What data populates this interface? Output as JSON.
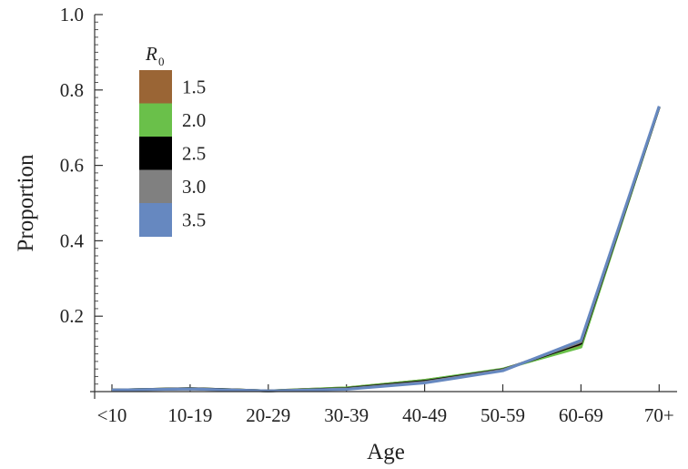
{
  "chart_data": {
    "type": "line",
    "xlabel": "Age",
    "ylabel": "Proportion",
    "categories": [
      "<10",
      "10-19",
      "20-29",
      "30-39",
      "40-49",
      "50-59",
      "60-69",
      "70+"
    ],
    "ylim": [
      0,
      1.0
    ],
    "yticks": [
      "0.2",
      "0.4",
      "0.6",
      "0.8",
      "1.0"
    ],
    "grid": false,
    "legend": {
      "title_main": "R",
      "title_sub": "0",
      "placement": "top-left"
    },
    "series": [
      {
        "name": "1.5",
        "color": "#9a6535",
        "values": [
          0.004,
          0.008,
          0.002,
          0.01,
          0.03,
          0.058,
          0.125,
          0.755
        ]
      },
      {
        "name": "2.0",
        "color": "#6ac04a",
        "values": [
          0.004,
          0.008,
          0.002,
          0.01,
          0.03,
          0.06,
          0.118,
          0.755
        ]
      },
      {
        "name": "2.5",
        "color": "#000000",
        "values": [
          0.004,
          0.008,
          0.002,
          0.008,
          0.027,
          0.058,
          0.128,
          0.755
        ]
      },
      {
        "name": "3.0",
        "color": "#808080",
        "values": [
          0.004,
          0.007,
          0.002,
          0.007,
          0.025,
          0.057,
          0.132,
          0.756
        ]
      },
      {
        "name": "3.5",
        "color": "#6688c0",
        "values": [
          0.004,
          0.007,
          0.002,
          0.006,
          0.023,
          0.055,
          0.136,
          0.757
        ]
      }
    ]
  }
}
